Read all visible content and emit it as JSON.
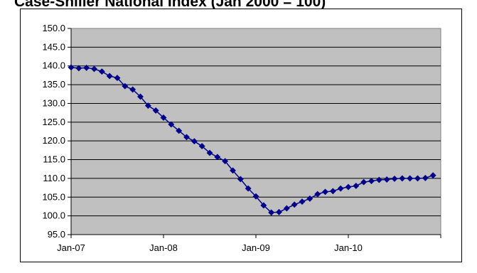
{
  "chart_data": {
    "type": "line",
    "title": "Case-Shiller National Index (Jan 2000 = 100)",
    "series": [
      {
        "values": [
          139.6,
          139.4,
          139.5,
          139.2,
          138.5,
          137.3,
          136.8,
          134.6,
          133.7,
          131.8,
          129.4,
          128.1,
          126.2,
          124.4,
          122.7,
          121.0,
          119.9,
          118.6,
          116.8,
          115.7,
          114.6,
          112.1,
          109.8,
          107.3,
          105.2,
          102.8,
          100.9,
          101.0,
          102.0,
          103.0,
          103.8,
          104.6,
          105.8,
          106.4,
          106.6,
          107.3,
          107.7,
          108.0,
          109.0,
          109.3,
          109.6,
          109.7,
          109.9,
          110.0,
          110.0,
          110.0,
          110.1,
          110.8
        ],
        "color": "#00008B"
      }
    ],
    "x_start": "Jan-07",
    "x_tick_labels": [
      "Jan-07",
      "Jan-08",
      "Jan-09",
      "Jan-10"
    ],
    "y_tick_labels": [
      "150.0",
      "145.0",
      "140.0",
      "135.0",
      "130.0",
      "125.0",
      "120.0",
      "115.0",
      "110.0",
      "105.0",
      "100.0",
      "95.0"
    ],
    "ylim": [
      95,
      150
    ],
    "plot_background": "#C0C0C0",
    "grid": "horizontal"
  }
}
